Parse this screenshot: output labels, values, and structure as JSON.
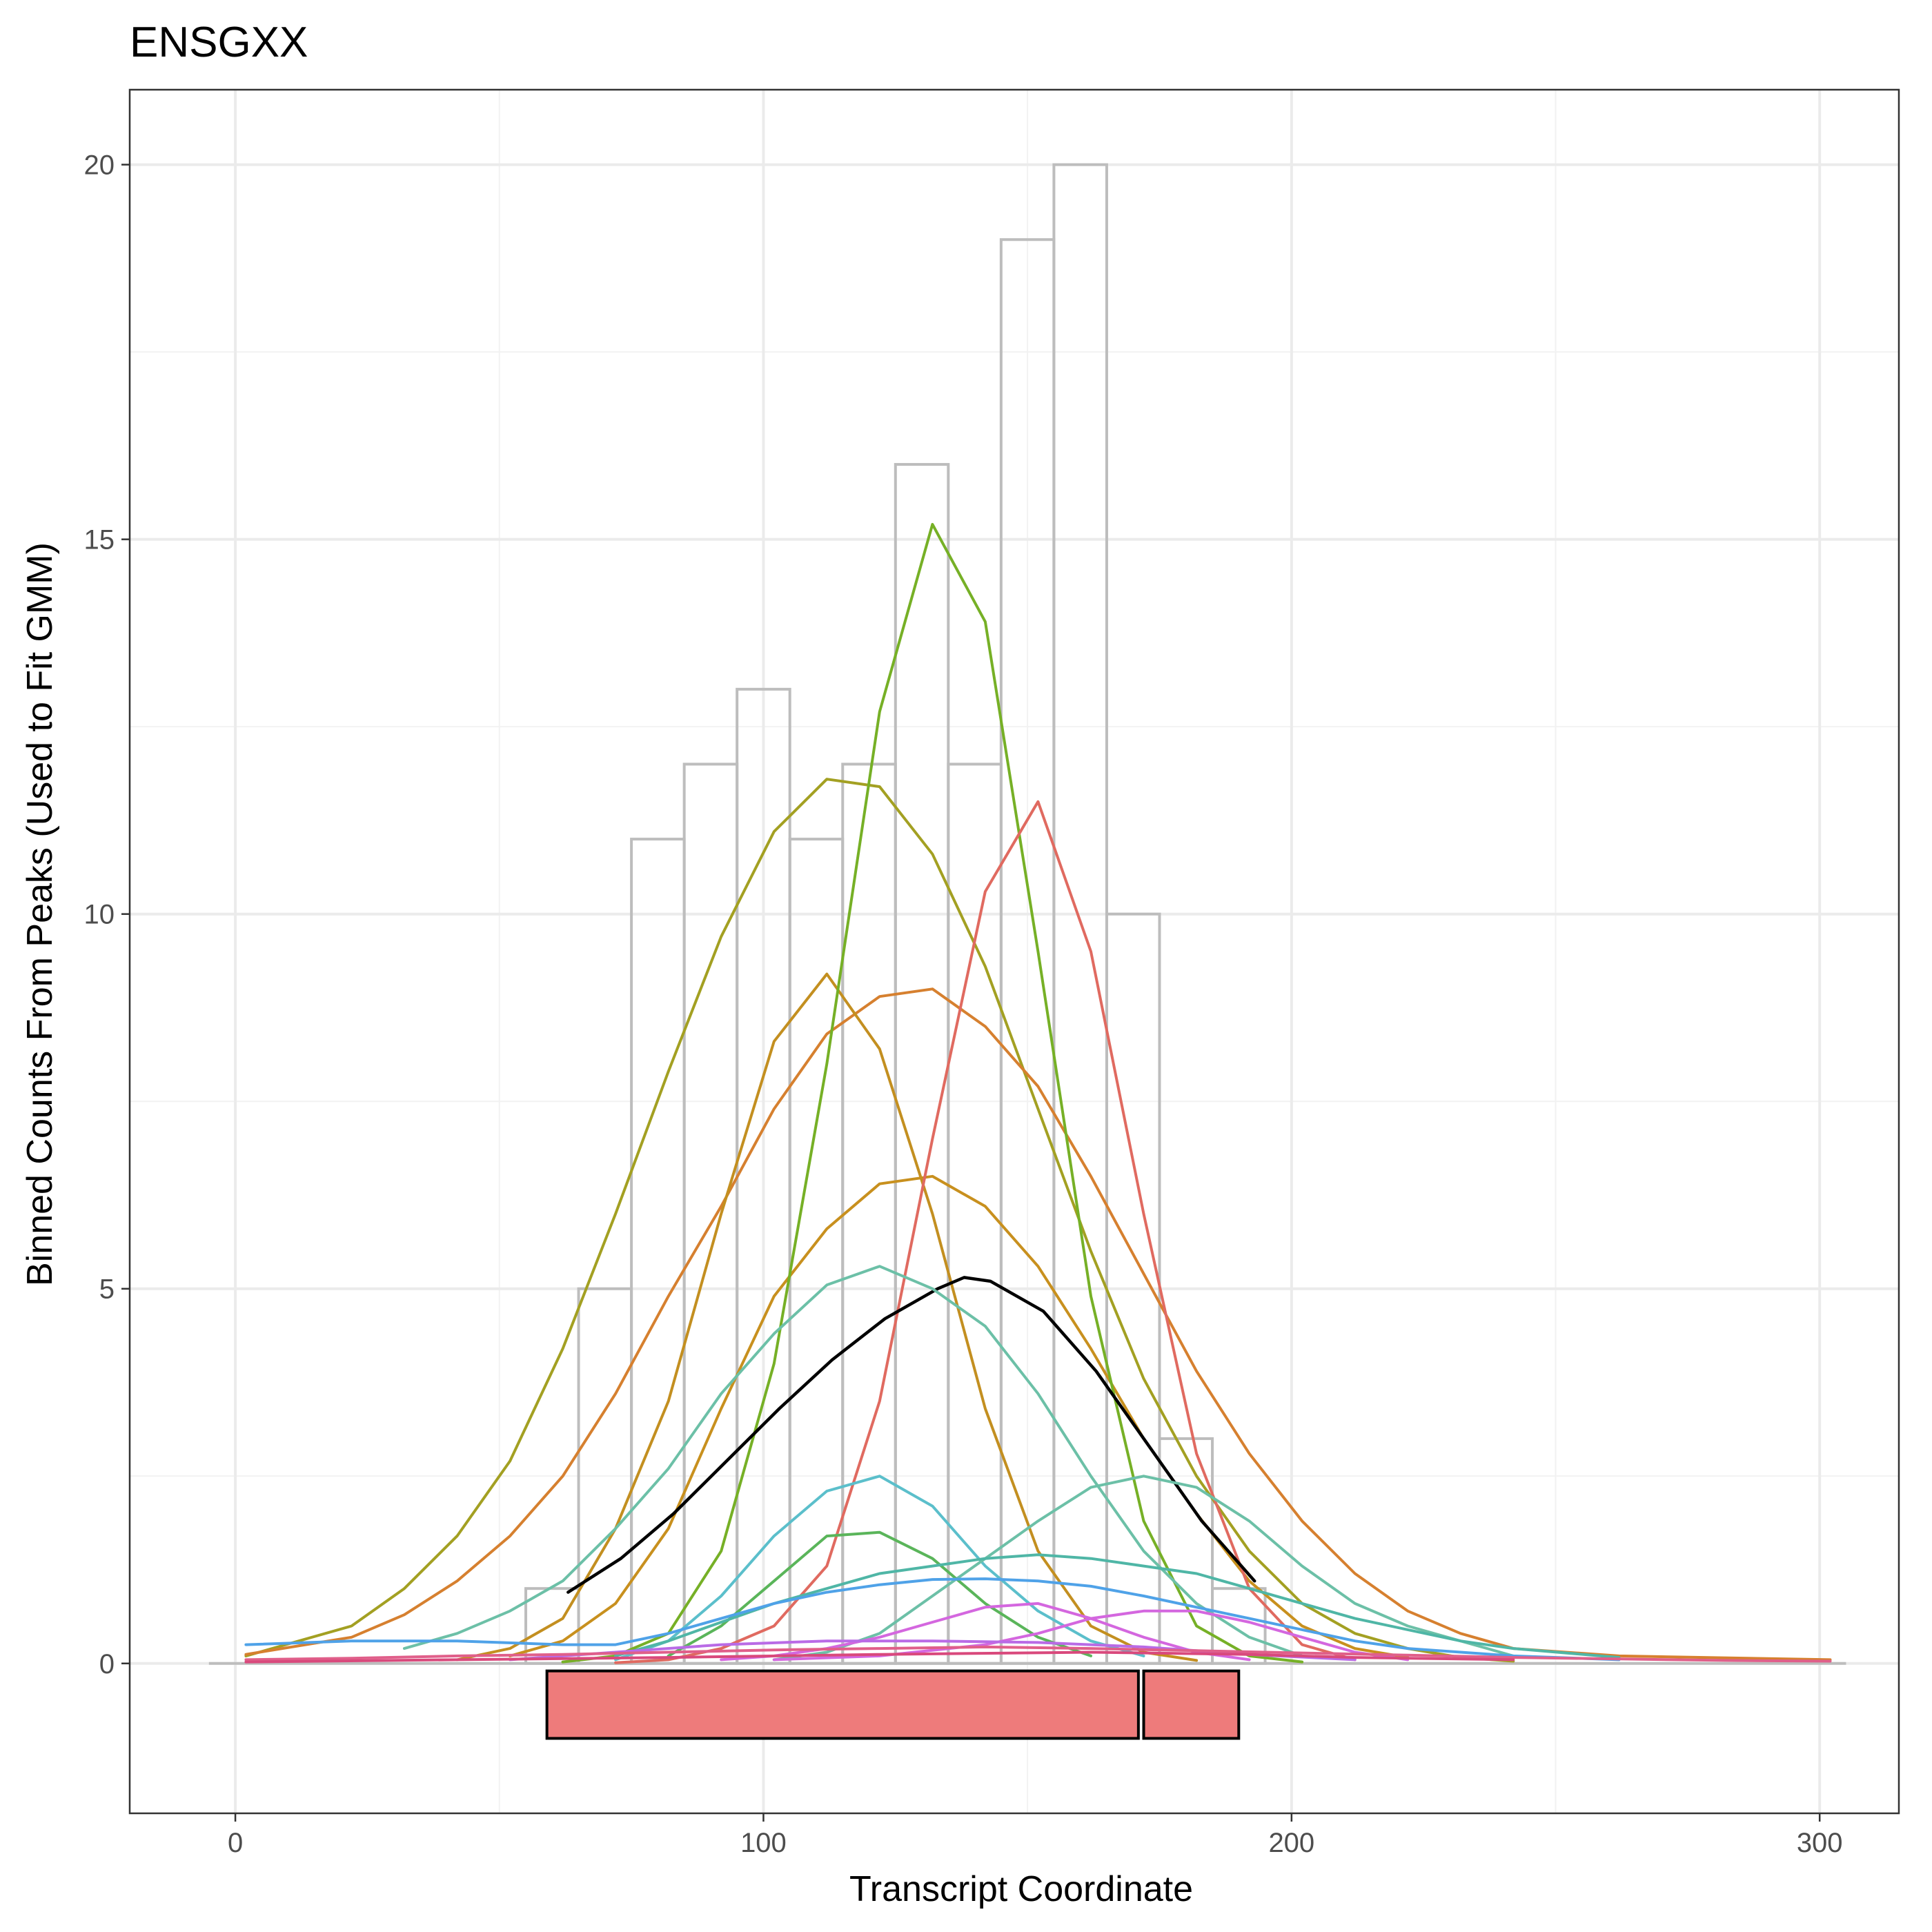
{
  "chart_data": {
    "type": "line",
    "title": "ENSGXX",
    "xlabel": "Transcript Coordinate",
    "ylabel": "Binned Counts From Peaks (Used to Fit GMM)",
    "xlim": [
      -20,
      315
    ],
    "ylim": [
      -2,
      21
    ],
    "xticks": [
      0,
      100,
      200,
      300
    ],
    "yticks": [
      0,
      5,
      10,
      15,
      20
    ],
    "grid": true,
    "legend": "none",
    "histogram": {
      "bin_width": 10,
      "bins": [
        {
          "start": 55,
          "count": 1
        },
        {
          "start": 65,
          "count": 5
        },
        {
          "start": 75,
          "count": 11
        },
        {
          "start": 85,
          "count": 12
        },
        {
          "start": 95,
          "count": 13
        },
        {
          "start": 105,
          "count": 11
        },
        {
          "start": 115,
          "count": 12
        },
        {
          "start": 125,
          "count": 16
        },
        {
          "start": 135,
          "count": 12
        },
        {
          "start": 145,
          "count": 19
        },
        {
          "start": 155,
          "count": 20
        },
        {
          "start": 165,
          "count": 10
        },
        {
          "start": 175,
          "count": 3
        },
        {
          "start": 185,
          "count": 1
        }
      ],
      "baseline_range": [
        -5,
        305
      ],
      "color": "#bdbdbd"
    },
    "features": [
      {
        "start": 59,
        "end": 171,
        "y_top": -0.1,
        "y_bottom": -1.0,
        "color": "#ee7b7b"
      },
      {
        "start": 172,
        "end": 190,
        "y_top": -0.1,
        "y_bottom": -1.0,
        "color": "#ee7b7b"
      }
    ],
    "series": [
      {
        "color": "#a3a022",
        "points": [
          [
            2,
            0.1
          ],
          [
            22,
            0.5
          ],
          [
            32,
            1.0
          ],
          [
            42,
            1.7
          ],
          [
            52,
            2.7
          ],
          [
            62,
            4.2
          ],
          [
            72,
            6.0
          ],
          [
            82,
            7.9
          ],
          [
            92,
            9.7
          ],
          [
            102,
            11.1
          ],
          [
            112,
            11.8
          ],
          [
            122,
            11.7
          ],
          [
            132,
            10.8
          ],
          [
            142,
            9.3
          ],
          [
            152,
            7.4
          ],
          [
            162,
            5.5
          ],
          [
            172,
            3.8
          ],
          [
            182,
            2.5
          ],
          [
            192,
            1.5
          ],
          [
            202,
            0.8
          ],
          [
            212,
            0.4
          ],
          [
            222,
            0.2
          ],
          [
            232,
            0.08
          ],
          [
            242,
            0.03
          ]
        ]
      },
      {
        "color": "#d6802f",
        "points": [
          [
            2,
            0.12
          ],
          [
            22,
            0.35
          ],
          [
            32,
            0.65
          ],
          [
            42,
            1.1
          ],
          [
            52,
            1.7
          ],
          [
            62,
            2.5
          ],
          [
            72,
            3.6
          ],
          [
            82,
            4.9
          ],
          [
            92,
            6.1
          ],
          [
            102,
            7.4
          ],
          [
            112,
            8.4
          ],
          [
            122,
            8.9
          ],
          [
            132,
            9.0
          ],
          [
            142,
            8.5
          ],
          [
            152,
            7.7
          ],
          [
            162,
            6.5
          ],
          [
            172,
            5.2
          ],
          [
            182,
            3.9
          ],
          [
            192,
            2.8
          ],
          [
            202,
            1.9
          ],
          [
            212,
            1.2
          ],
          [
            222,
            0.7
          ],
          [
            232,
            0.4
          ],
          [
            242,
            0.2
          ],
          [
            262,
            0.1
          ],
          [
            302,
            0.05
          ]
        ]
      },
      {
        "color": "#c38f20",
        "points": [
          [
            42,
            0.05
          ],
          [
            52,
            0.2
          ],
          [
            62,
            0.6
          ],
          [
            72,
            1.8
          ],
          [
            82,
            3.5
          ],
          [
            92,
            6.0
          ],
          [
            102,
            8.3
          ],
          [
            112,
            9.2
          ],
          [
            122,
            8.2
          ],
          [
            132,
            6.0
          ],
          [
            142,
            3.4
          ],
          [
            152,
            1.5
          ],
          [
            162,
            0.5
          ],
          [
            172,
            0.15
          ],
          [
            182,
            0.04
          ]
        ]
      },
      {
        "color": "#c8901e",
        "points": [
          [
            52,
            0.1
          ],
          [
            62,
            0.3
          ],
          [
            72,
            0.8
          ],
          [
            82,
            1.8
          ],
          [
            92,
            3.4
          ],
          [
            102,
            4.9
          ],
          [
            112,
            5.8
          ],
          [
            122,
            6.4
          ],
          [
            132,
            6.5
          ],
          [
            142,
            6.1
          ],
          [
            152,
            5.3
          ],
          [
            162,
            4.2
          ],
          [
            172,
            3.0
          ],
          [
            182,
            2.0
          ],
          [
            192,
            1.1
          ],
          [
            202,
            0.5
          ],
          [
            212,
            0.2
          ],
          [
            222,
            0.08
          ]
        ]
      },
      {
        "color": "#76b026",
        "points": [
          [
            62,
            0.02
          ],
          [
            72,
            0.1
          ],
          [
            82,
            0.4
          ],
          [
            92,
            1.5
          ],
          [
            102,
            4.0
          ],
          [
            112,
            8.0
          ],
          [
            122,
            12.7
          ],
          [
            132,
            15.2
          ],
          [
            142,
            13.9
          ],
          [
            152,
            9.5
          ],
          [
            162,
            4.9
          ],
          [
            172,
            1.9
          ],
          [
            182,
            0.5
          ],
          [
            192,
            0.1
          ],
          [
            202,
            0.02
          ]
        ]
      },
      {
        "color": "#e06a60",
        "points": [
          [
            72,
            0.01
          ],
          [
            82,
            0.05
          ],
          [
            92,
            0.2
          ],
          [
            102,
            0.5
          ],
          [
            112,
            1.3
          ],
          [
            122,
            3.5
          ],
          [
            132,
            7.0
          ],
          [
            142,
            10.3
          ],
          [
            152,
            11.5
          ],
          [
            162,
            9.5
          ],
          [
            172,
            6.0
          ],
          [
            182,
            2.8
          ],
          [
            192,
            1.0
          ],
          [
            202,
            0.25
          ],
          [
            212,
            0.05
          ]
        ]
      },
      {
        "color": "#000000",
        "points": [
          [
            63,
            0.95
          ],
          [
            73,
            1.4
          ],
          [
            83,
            2.0
          ],
          [
            93,
            2.7
          ],
          [
            103,
            3.4
          ],
          [
            113,
            4.05
          ],
          [
            123,
            4.6
          ],
          [
            133,
            5.0
          ],
          [
            138,
            5.15
          ],
          [
            143,
            5.1
          ],
          [
            153,
            4.7
          ],
          [
            163,
            3.9
          ],
          [
            173,
            2.9
          ],
          [
            183,
            1.9
          ],
          [
            193,
            1.1
          ]
        ]
      },
      {
        "color": "#6cc0a7",
        "points": [
          [
            32,
            0.2
          ],
          [
            42,
            0.4
          ],
          [
            52,
            0.7
          ],
          [
            62,
            1.1
          ],
          [
            72,
            1.8
          ],
          [
            82,
            2.6
          ],
          [
            92,
            3.6
          ],
          [
            102,
            4.4
          ],
          [
            112,
            5.05
          ],
          [
            122,
            5.3
          ],
          [
            132,
            5.0
          ],
          [
            142,
            4.5
          ],
          [
            152,
            3.6
          ],
          [
            162,
            2.5
          ],
          [
            172,
            1.5
          ],
          [
            182,
            0.8
          ],
          [
            192,
            0.35
          ],
          [
            202,
            0.1
          ]
        ]
      },
      {
        "color": "#5bbfcb",
        "points": [
          [
            72,
            0.05
          ],
          [
            82,
            0.3
          ],
          [
            92,
            0.9
          ],
          [
            102,
            1.7
          ],
          [
            112,
            2.3
          ],
          [
            122,
            2.5
          ],
          [
            132,
            2.1
          ],
          [
            142,
            1.3
          ],
          [
            152,
            0.7
          ],
          [
            162,
            0.3
          ],
          [
            172,
            0.1
          ]
        ]
      },
      {
        "color": "#6cc0a7",
        "points": [
          [
            102,
            0.05
          ],
          [
            112,
            0.15
          ],
          [
            122,
            0.4
          ],
          [
            132,
            0.9
          ],
          [
            142,
            1.4
          ],
          [
            152,
            1.9
          ],
          [
            162,
            2.35
          ],
          [
            172,
            2.5
          ],
          [
            182,
            2.35
          ],
          [
            192,
            1.9
          ],
          [
            202,
            1.3
          ],
          [
            212,
            0.8
          ],
          [
            222,
            0.5
          ],
          [
            232,
            0.3
          ],
          [
            242,
            0.1
          ]
        ]
      },
      {
        "color": "#5ab55a",
        "points": [
          [
            82,
            0.1
          ],
          [
            92,
            0.5
          ],
          [
            102,
            1.1
          ],
          [
            112,
            1.7
          ],
          [
            122,
            1.75
          ],
          [
            132,
            1.4
          ],
          [
            142,
            0.8
          ],
          [
            152,
            0.35
          ],
          [
            162,
            0.1
          ]
        ]
      },
      {
        "color": "#4fb6a6",
        "points": [
          [
            72,
            0.1
          ],
          [
            82,
            0.3
          ],
          [
            92,
            0.55
          ],
          [
            102,
            0.8
          ],
          [
            112,
            1.0
          ],
          [
            122,
            1.2
          ],
          [
            132,
            1.3
          ],
          [
            142,
            1.4
          ],
          [
            152,
            1.45
          ],
          [
            162,
            1.4
          ],
          [
            172,
            1.3
          ],
          [
            182,
            1.2
          ],
          [
            192,
            1.0
          ],
          [
            202,
            0.8
          ],
          [
            212,
            0.6
          ],
          [
            222,
            0.45
          ],
          [
            232,
            0.3
          ],
          [
            242,
            0.2
          ],
          [
            262,
            0.08
          ]
        ]
      },
      {
        "color": "#4fa2e8",
        "points": [
          [
            2,
            0.25
          ],
          [
            22,
            0.3
          ],
          [
            42,
            0.3
          ],
          [
            62,
            0.25
          ],
          [
            72,
            0.25
          ],
          [
            82,
            0.4
          ],
          [
            92,
            0.6
          ],
          [
            102,
            0.8
          ],
          [
            112,
            0.95
          ],
          [
            122,
            1.05
          ],
          [
            132,
            1.12
          ],
          [
            142,
            1.13
          ],
          [
            152,
            1.1
          ],
          [
            162,
            1.03
          ],
          [
            172,
            0.9
          ],
          [
            182,
            0.75
          ],
          [
            192,
            0.6
          ],
          [
            202,
            0.45
          ],
          [
            212,
            0.3
          ],
          [
            222,
            0.2
          ],
          [
            242,
            0.1
          ],
          [
            262,
            0.05
          ]
        ]
      },
      {
        "color": "#d467df",
        "points": [
          [
            92,
            0.05
          ],
          [
            102,
            0.1
          ],
          [
            112,
            0.2
          ],
          [
            122,
            0.35
          ],
          [
            132,
            0.55
          ],
          [
            142,
            0.75
          ],
          [
            152,
            0.8
          ],
          [
            162,
            0.6
          ],
          [
            172,
            0.35
          ],
          [
            182,
            0.15
          ],
          [
            192,
            0.05
          ]
        ]
      },
      {
        "color": "#d467df",
        "points": [
          [
            102,
            0.05
          ],
          [
            122,
            0.1
          ],
          [
            142,
            0.25
          ],
          [
            152,
            0.4
          ],
          [
            162,
            0.6
          ],
          [
            172,
            0.7
          ],
          [
            182,
            0.7
          ],
          [
            192,
            0.55
          ],
          [
            202,
            0.35
          ],
          [
            212,
            0.15
          ],
          [
            222,
            0.05
          ]
        ]
      },
      {
        "color": "#b96be6",
        "points": [
          [
            52,
            0.05
          ],
          [
            72,
            0.15
          ],
          [
            92,
            0.25
          ],
          [
            112,
            0.3
          ],
          [
            132,
            0.3
          ],
          [
            152,
            0.28
          ],
          [
            172,
            0.22
          ],
          [
            192,
            0.12
          ],
          [
            212,
            0.05
          ]
        ]
      },
      {
        "color": "#e05f8a",
        "points": [
          [
            2,
            0.05
          ],
          [
            22,
            0.07
          ],
          [
            42,
            0.1
          ],
          [
            62,
            0.12
          ],
          [
            82,
            0.15
          ],
          [
            102,
            0.18
          ],
          [
            122,
            0.2
          ],
          [
            142,
            0.22
          ],
          [
            162,
            0.2
          ],
          [
            182,
            0.17
          ],
          [
            202,
            0.14
          ],
          [
            222,
            0.11
          ],
          [
            242,
            0.08
          ],
          [
            262,
            0.06
          ],
          [
            282,
            0.04
          ],
          [
            302,
            0.03
          ]
        ]
      },
      {
        "color": "#d9497c",
        "points": [
          [
            2,
            0.02
          ],
          [
            42,
            0.05
          ],
          [
            82,
            0.08
          ],
          [
            122,
            0.12
          ],
          [
            162,
            0.15
          ],
          [
            192,
            0.12
          ],
          [
            212,
            0.08
          ],
          [
            242,
            0.05
          ]
        ]
      }
    ]
  }
}
